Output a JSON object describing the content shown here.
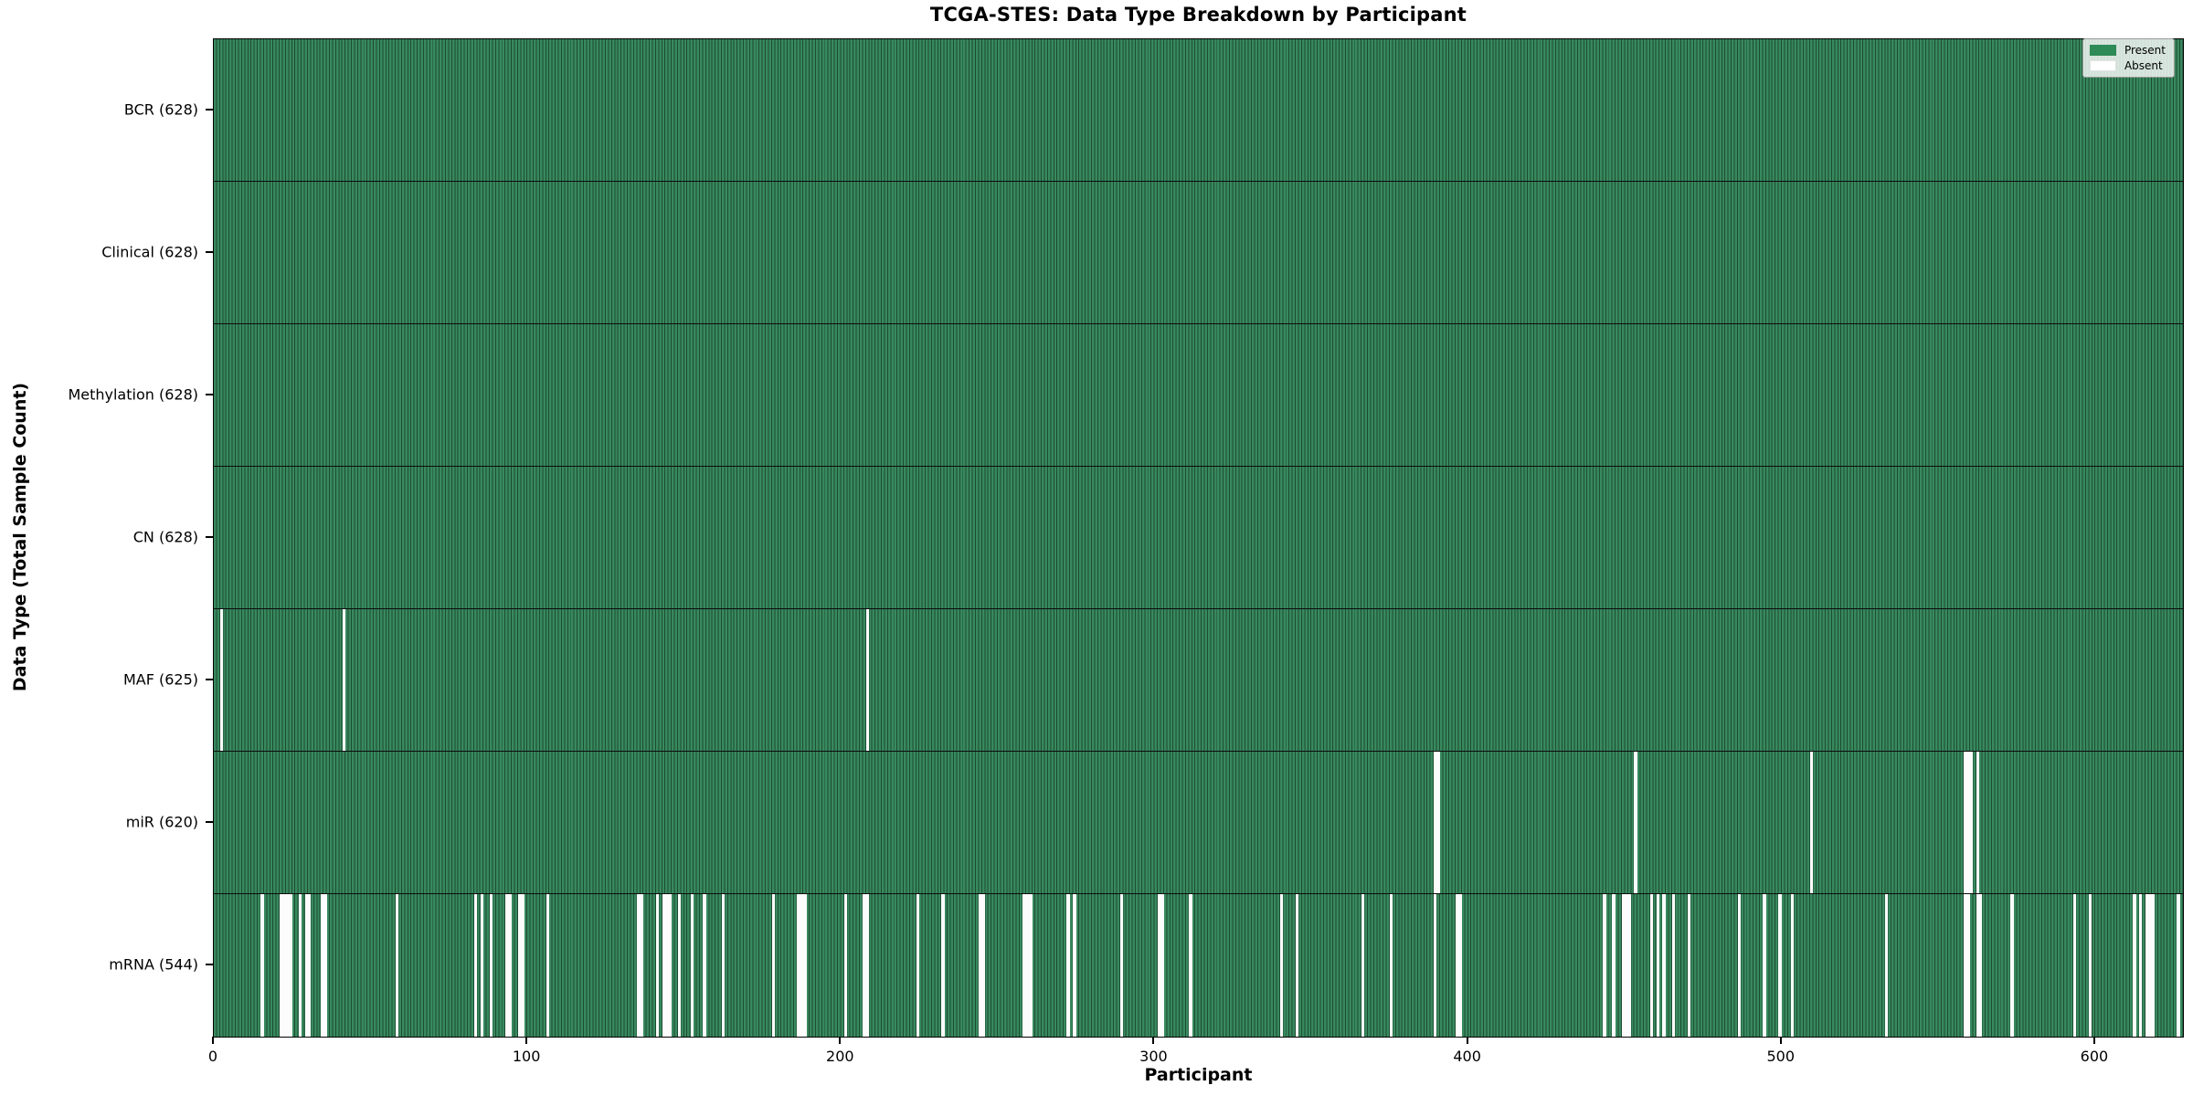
{
  "chart_data": {
    "type": "heatmap",
    "title": "TCGA-STES: Data Type Breakdown by Participant",
    "xlabel": "Participant",
    "ylabel": "Data Type (Total Sample Count)",
    "n_participants": 628,
    "x_ticks": [
      0,
      100,
      200,
      300,
      400,
      500,
      600
    ],
    "grid": false,
    "legend_position": "upper right",
    "legend": [
      {
        "label": "Present",
        "color": "#2E8B57"
      },
      {
        "label": "Absent",
        "color": "#FFFFFF"
      }
    ],
    "colors": {
      "present_fill": "#38895e",
      "bar_edge": "#1c4c31",
      "absent_fill": "#fcfcfc",
      "axis": "#000000"
    },
    "rows": [
      {
        "label": "BCR (628)",
        "data_type": "BCR",
        "count": 628,
        "absent_participants": []
      },
      {
        "label": "Clinical (628)",
        "data_type": "Clinical",
        "count": 628,
        "absent_participants": []
      },
      {
        "label": "Methylation (628)",
        "data_type": "Methylation",
        "count": 628,
        "absent_participants": []
      },
      {
        "label": "CN (628)",
        "data_type": "CN",
        "count": 628,
        "absent_participants": []
      },
      {
        "label": "MAF (625)",
        "data_type": "MAF",
        "count": 625,
        "absent_participants": [
          2,
          41,
          208
        ]
      },
      {
        "label": "miR (620)",
        "data_type": "miR",
        "count": 620,
        "absent_participants": [
          389,
          390,
          453,
          509,
          558,
          559,
          560,
          562
        ]
      },
      {
        "label": "mRNA (544)",
        "data_type": "mRNA",
        "count": 544,
        "absent_participants": [
          15,
          21,
          22,
          23,
          24,
          27,
          29,
          30,
          34,
          35,
          58,
          83,
          85,
          88,
          93,
          94,
          97,
          98,
          106,
          135,
          136,
          141,
          143,
          144,
          145,
          148,
          152,
          156,
          162,
          178,
          186,
          187,
          188,
          201,
          207,
          208,
          224,
          232,
          244,
          245,
          258,
          259,
          260,
          272,
          274,
          289,
          301,
          302,
          311,
          340,
          345,
          366,
          375,
          389,
          396,
          397,
          443,
          446,
          449,
          450,
          451,
          458,
          460,
          462,
          465,
          470,
          486,
          494,
          499,
          503,
          533,
          558,
          559,
          562,
          563,
          573,
          593,
          598,
          612,
          614,
          616,
          617,
          618,
          626
        ]
      }
    ]
  }
}
